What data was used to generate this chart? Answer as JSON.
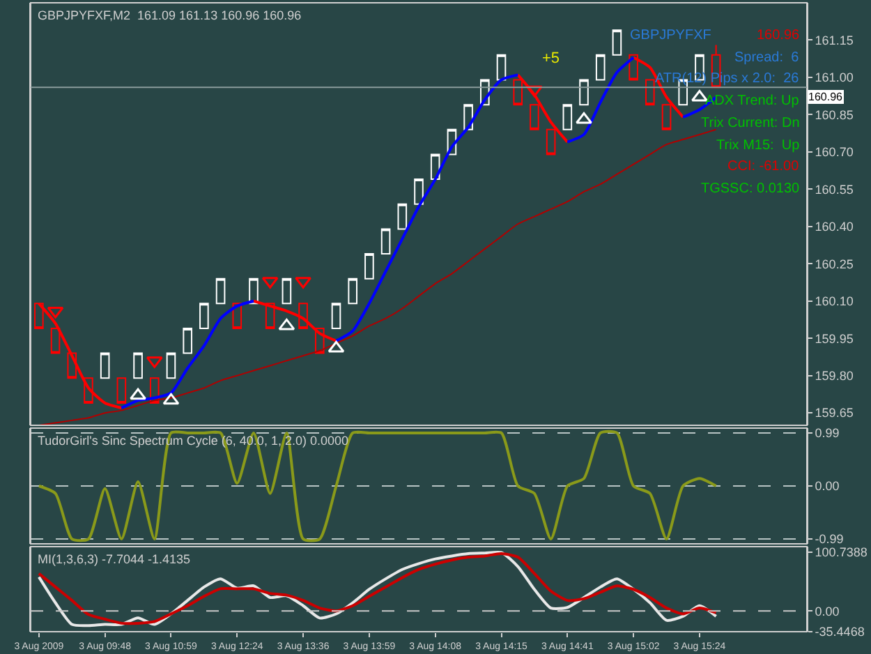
{
  "chart_data": [
    {
      "type": "candlestick",
      "title": "GBPJPYFXF,M2  161.09 161.13 160.96 160.96",
      "tick_labels": "y",
      "ohlc": [
        [
          160.09,
          160.09,
          159.99,
          159.99
        ],
        [
          159.99,
          159.99,
          159.89,
          159.89
        ],
        [
          159.89,
          159.89,
          159.79,
          159.79
        ],
        [
          159.79,
          159.79,
          159.69,
          159.69
        ],
        [
          159.79,
          159.89,
          159.79,
          159.89
        ],
        [
          159.79,
          159.79,
          159.69,
          159.69
        ],
        [
          159.79,
          159.89,
          159.79,
          159.89
        ],
        [
          159.79,
          159.79,
          159.69,
          159.69
        ],
        [
          159.79,
          159.89,
          159.79,
          159.89
        ],
        [
          159.89,
          159.99,
          159.89,
          159.99
        ],
        [
          159.99,
          160.09,
          159.99,
          160.09
        ],
        [
          160.09,
          160.19,
          160.09,
          160.19
        ],
        [
          160.09,
          160.09,
          159.99,
          159.99
        ],
        [
          160.09,
          160.19,
          160.09,
          160.19
        ],
        [
          160.09,
          160.09,
          159.99,
          159.99
        ],
        [
          160.09,
          160.19,
          160.09,
          160.19
        ],
        [
          160.09,
          160.09,
          159.99,
          159.99
        ],
        [
          159.99,
          159.99,
          159.89,
          159.89
        ],
        [
          159.99,
          160.09,
          159.99,
          160.09
        ],
        [
          160.09,
          160.19,
          160.09,
          160.19
        ],
        [
          160.19,
          160.29,
          160.19,
          160.29
        ],
        [
          160.29,
          160.39,
          160.29,
          160.39
        ],
        [
          160.39,
          160.49,
          160.39,
          160.49
        ],
        [
          160.49,
          160.59,
          160.49,
          160.59
        ],
        [
          160.59,
          160.69,
          160.59,
          160.69
        ],
        [
          160.69,
          160.79,
          160.69,
          160.79
        ],
        [
          160.79,
          160.89,
          160.79,
          160.89
        ],
        [
          160.89,
          160.99,
          160.89,
          160.99
        ],
        [
          160.99,
          161.09,
          160.99,
          161.09
        ],
        [
          160.99,
          160.99,
          160.89,
          160.89
        ],
        [
          160.89,
          160.89,
          160.79,
          160.79
        ],
        [
          160.79,
          160.79,
          160.69,
          160.69
        ],
        [
          160.79,
          160.89,
          160.79,
          160.89
        ],
        [
          160.89,
          160.99,
          160.89,
          160.99
        ],
        [
          160.99,
          161.09,
          160.99,
          161.09
        ],
        [
          161.09,
          161.19,
          161.09,
          161.19
        ],
        [
          161.09,
          161.09,
          160.99,
          160.99
        ],
        [
          160.99,
          160.99,
          160.89,
          160.89
        ],
        [
          160.89,
          160.89,
          160.79,
          160.79
        ],
        [
          160.89,
          160.99,
          160.89,
          160.99
        ],
        [
          160.99,
          161.09,
          160.99,
          161.09
        ],
        [
          161.09,
          161.13,
          160.96,
          160.96
        ]
      ],
      "colors": [
        "#ff0000",
        "#ff0000",
        "#ff0000",
        "#ff0000",
        "#ffffff",
        "#ff0000",
        "#ffffff",
        "#ff0000",
        "#ffffff",
        "#ffffff",
        "#ffffff",
        "#ffffff",
        "#ff0000",
        "#ffffff",
        "#ff0000",
        "#ffffff",
        "#ff0000",
        "#ff0000",
        "#ffffff",
        "#ffffff",
        "#ffffff",
        "#ffffff",
        "#ffffff",
        "#ffffff",
        "#ffffff",
        "#ffffff",
        "#ffffff",
        "#ffffff",
        "#ffffff",
        "#ff0000",
        "#ff0000",
        "#ff0000",
        "#ffffff",
        "#ffffff",
        "#ffffff",
        "#ffffff",
        "#ff0000",
        "#ff0000",
        "#ff0000",
        "#ffffff",
        "#ffffff",
        "#ff0000"
      ],
      "series": [
        {
          "type": "line",
          "color": "#b00000",
          "values": [
            159.6,
            159.61,
            159.62,
            159.63,
            159.65,
            159.66,
            159.68,
            159.7,
            159.71,
            159.73,
            159.75,
            159.78,
            159.8,
            159.82,
            159.84,
            159.86,
            159.88,
            159.9,
            159.93,
            159.96,
            160.0,
            160.03,
            160.07,
            160.12,
            160.17,
            160.21,
            160.26,
            160.31,
            160.36,
            160.41,
            160.44,
            160.47,
            160.5,
            160.54,
            160.57,
            160.61,
            160.65,
            160.69,
            160.73,
            160.75,
            160.77,
            160.79
          ]
        },
        {
          "type": "line",
          "color": "#ff0000",
          "values": [
            160.09,
            160.01,
            159.88,
            159.75,
            159.69,
            159.67,
            null,
            null,
            null,
            null,
            null,
            null,
            null,
            160.1,
            160.08,
            160.06,
            160.03,
            159.97,
            159.94,
            null,
            null,
            null,
            null,
            null,
            null,
            null,
            null,
            null,
            null,
            161.01,
            160.93,
            160.82,
            160.74,
            null,
            null,
            null,
            161.08,
            161.04,
            160.92,
            160.84,
            null,
            null
          ]
        },
        {
          "type": "line",
          "color": "#0000ff",
          "values": [
            null,
            null,
            null,
            null,
            null,
            159.67,
            159.7,
            159.71,
            159.73,
            159.83,
            159.92,
            160.03,
            160.08,
            160.1,
            null,
            null,
            null,
            null,
            159.94,
            159.98,
            160.09,
            160.22,
            160.35,
            160.48,
            160.59,
            160.72,
            160.8,
            160.91,
            160.99,
            161.01,
            null,
            null,
            160.74,
            160.77,
            160.9,
            161.02,
            161.08,
            null,
            null,
            160.84,
            160.87,
            160.92
          ]
        },
        {
          "type": "scatter",
          "marker": "triangle",
          "color": "#ffffff",
          "values": [
            null,
            null,
            null,
            null,
            null,
            null,
            159.72,
            null,
            159.7,
            null,
            null,
            null,
            null,
            null,
            null,
            160.0,
            null,
            null,
            159.91,
            null,
            null,
            null,
            null,
            null,
            null,
            null,
            null,
            null,
            null,
            null,
            null,
            null,
            null,
            160.83,
            null,
            null,
            null,
            null,
            null,
            null,
            160.92,
            null
          ]
        },
        {
          "type": "scatter",
          "marker": "triangle-down",
          "color": "#ff0000",
          "values": [
            null,
            160.06,
            null,
            null,
            null,
            null,
            null,
            159.86,
            null,
            null,
            null,
            null,
            null,
            null,
            160.18,
            null,
            160.18,
            null,
            null,
            null,
            null,
            null,
            null,
            null,
            null,
            null,
            null,
            null,
            null,
            null,
            160.95,
            null,
            null,
            null,
            null,
            null,
            null,
            null,
            null,
            null,
            null,
            null
          ]
        }
      ],
      "ylim": [
        159.6,
        161.3
      ],
      "yticks": [
        159.65,
        {
          "value": 159.8,
          "label": "159.80"
        },
        159.95,
        {
          "value": 160.1,
          "label": "160.10"
        },
        160.25,
        {
          "value": 160.4,
          "label": "160.40"
        },
        160.55,
        {
          "value": 160.7,
          "label": "160.70"
        },
        160.85,
        {
          "value": 161,
          "label": "161.00"
        },
        161.15
      ],
      "ref_lines": [
        {
          "axis": "y",
          "value": 160.96,
          "label": "160.96",
          "color": "#8a9c9c"
        }
      ],
      "annotations": [
        "GBPJPYFXF",
        "160.96",
        "Spread:  6",
        "ATR(12) Pips x 2.0:  26",
        "ADX Trend: Up",
        "Trix Current: Dn",
        "Trix M15:  Up",
        "CCI: -61.00",
        "TGSSC: 0.0130",
        "+5"
      ]
    },
    {
      "type": "line",
      "title": "TudorGirl's Sinc Spectrum Cycle (6, 40.0, 1, 2.0) 0.0000",
      "tick_labels": "y",
      "grid": "y",
      "series": [
        {
          "color": "#8a9a1a",
          "values": [
            0,
            -0.14,
            -0.99,
            -0.99,
            -0.05,
            -0.99,
            0.08,
            -0.99,
            0.99,
            0.99,
            0.99,
            0.99,
            0.05,
            0.99,
            -0.14,
            0.99,
            -0.99,
            -0.99,
            0,
            0.99,
            0.99,
            0.99,
            0.99,
            0.99,
            0.99,
            0.99,
            0.99,
            0.99,
            0.99,
            0,
            -0.14,
            -0.99,
            0,
            0.14,
            0.99,
            0.99,
            0,
            -0.14,
            -0.99,
            0,
            0.14,
            0
          ]
        }
      ],
      "ylim": [
        -1.08,
        1.08
      ],
      "yticks": [
        -0.99,
        {
          "value": 0,
          "label": "0.00"
        },
        0.99
      ]
    },
    {
      "type": "line",
      "title": "MI(1,3,6,3) -7.7044 -1.4135",
      "categories": [
        "3 Aug 2009",
        null,
        null,
        null,
        "3 Aug 09:48",
        null,
        null,
        null,
        "3 Aug 10:59",
        null,
        null,
        null,
        "3 Aug 12:24",
        null,
        null,
        null,
        "3 Aug 13:36",
        null,
        null,
        null,
        "3 Aug 13:59",
        null,
        null,
        null,
        "3 Aug 14:08",
        null,
        null,
        null,
        "3 Aug 14:15",
        null,
        null,
        null,
        "3 Aug 14:41",
        null,
        null,
        null,
        "3 Aug 15:02",
        null,
        null,
        null,
        "3 Aug 15:24",
        null
      ],
      "series": [
        {
          "color": "#e8e8e8",
          "values": [
            58,
            14,
            -23,
            -25,
            -23,
            -23,
            -12,
            -23,
            -5,
            18,
            41,
            55,
            39,
            43,
            23,
            26,
            9,
            -12,
            -5,
            14,
            37,
            55,
            71,
            81,
            89,
            94,
            98,
            99,
            100,
            76,
            37,
            5,
            6,
            23,
            41,
            55,
            37,
            14,
            -16,
            -9,
            9,
            -9
          ]
        },
        {
          "color": "#cc0000",
          "values": [
            64,
            41,
            18,
            -6,
            -14,
            -21,
            -21,
            -18,
            -5,
            9,
            25,
            38,
            38,
            38,
            30,
            27,
            18,
            5,
            0,
            9,
            25,
            41,
            57,
            71,
            80,
            87,
            92,
            94,
            98,
            92,
            64,
            34,
            18,
            21,
            32,
            43,
            37,
            23,
            5,
            -5,
            5,
            -3
          ]
        }
      ],
      "ylim": [
        -35.4468,
        110
      ],
      "yticks": [
        -35.4468,
        {
          "value": 0,
          "label": "0.00"
        },
        100.7388
      ],
      "ref_lines": [
        {
          "axis": "y",
          "value": 0,
          "line_style": "dashed",
          "color": "#c8c8c8"
        }
      ]
    }
  ]
}
